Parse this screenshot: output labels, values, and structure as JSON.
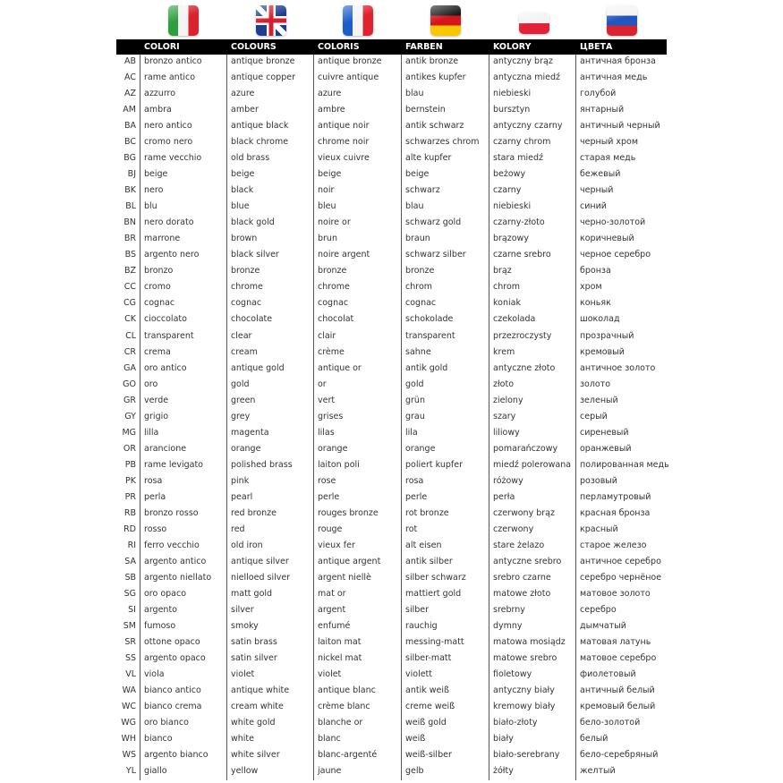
{
  "flags": [
    {
      "name": "italy-flag",
      "colors": [
        "#2e9e3e",
        "#f4f4f4",
        "#d9232e"
      ],
      "dir": "v"
    },
    {
      "name": "uk-flag",
      "colors": [
        "#1f3e8c",
        "#ffffff",
        "#d32030"
      ],
      "dir": "uk"
    },
    {
      "name": "france-flag",
      "colors": [
        "#1c5ec8",
        "#f4f4f4",
        "#e0222e"
      ],
      "dir": "v"
    },
    {
      "name": "germany-flag",
      "colors": [
        "#1a1a1a",
        "#d6141d",
        "#f7c800"
      ],
      "dir": "h"
    },
    {
      "name": "poland-flag",
      "colors": [
        "#f4f4f4",
        "#e0223a"
      ],
      "dir": "h"
    },
    {
      "name": "russia-flag",
      "colors": [
        "#f4f4f4",
        "#1f56c0",
        "#d8242e"
      ],
      "dir": "h"
    }
  ],
  "headers": [
    "",
    "COLORI",
    "COLOURS",
    "COLORIS",
    "FARBEN",
    "KOLORY",
    "ЦВЕТА"
  ],
  "rows": [
    [
      "AB",
      "bronzo antico",
      "antique bronze",
      "antique bronze",
      "antik bronze",
      "antyczny brąz",
      "античная бронза"
    ],
    [
      "AC",
      "rame antico",
      "antique copper",
      "cuivre antique",
      "antikes kupfer",
      "antyczna miedź",
      "античная медь"
    ],
    [
      "AZ",
      "azzurro",
      "azure",
      "azure",
      "blau",
      "niebieski",
      "голубой"
    ],
    [
      "AM",
      "ambra",
      "amber",
      "ambre",
      "bernstein",
      "bursztyn",
      "янтарный"
    ],
    [
      "BA",
      "nero antico",
      "antique black",
      "antique noir",
      "antik schwarz",
      "antyczny czarny",
      "античный черный"
    ],
    [
      "BC",
      "cromo nero",
      "black chrome",
      "chrome noir",
      "schwarzes chrom",
      "czarny chrom",
      "черный хром"
    ],
    [
      "BG",
      "rame vecchio",
      "old brass",
      "vieux cuivre",
      "alte kupfer",
      "stara miedź",
      "старая медь"
    ],
    [
      "BJ",
      "beige",
      "beige",
      "beige",
      "beige",
      "beżowy",
      "бежевый"
    ],
    [
      "BK",
      "nero",
      "black",
      "noir",
      "schwarz",
      "czarny",
      "черный"
    ],
    [
      "BL",
      "blu",
      "blue",
      "bleu",
      "blau",
      "niebieski",
      "синий"
    ],
    [
      "BN",
      "nero dorato",
      "black gold",
      "noire or",
      "schwarz gold",
      "czarny-złoto",
      "черно-золотой"
    ],
    [
      "BR",
      "marrone",
      "brown",
      "brun",
      "braun",
      "brązowy",
      "коричневый"
    ],
    [
      "BS",
      "argento nero",
      "black silver",
      "noire argent",
      "schwarz silber",
      "czarne srebro",
      "черное серебро"
    ],
    [
      "BZ",
      "bronzo",
      "bronze",
      "bronze",
      "bronze",
      "brąz",
      "бронза"
    ],
    [
      "CC",
      "cromo",
      "chrome",
      "chrome",
      "chrom",
      "chrom",
      "хром"
    ],
    [
      "CG",
      "cognac",
      "cognac",
      "cognac",
      "cognac",
      "koniak",
      "коньяк"
    ],
    [
      "CK",
      "cioccolato",
      "chocolate",
      "chocolat",
      "schokolade",
      "czekolada",
      "шоколад"
    ],
    [
      "CL",
      "transparent",
      "clear",
      "clair",
      "transparent",
      "przezroczysty",
      "прозрачный"
    ],
    [
      "CR",
      "crema",
      "cream",
      "crème",
      "sahne",
      "krem",
      "кремовый"
    ],
    [
      "GA",
      "oro antico",
      "antique gold",
      "antique or",
      "antik gold",
      "antyczne złoto",
      "античное золото"
    ],
    [
      "GO",
      "oro",
      "gold",
      "or",
      "gold",
      "złoto",
      "золото"
    ],
    [
      "GR",
      "verde",
      "green",
      "vert",
      "grün",
      "zielony",
      "зеленый"
    ],
    [
      "GY",
      "grigio",
      "grey",
      "grises",
      "grau",
      "szary",
      "серый"
    ],
    [
      "MG",
      "lilla",
      "magenta",
      "lilas",
      "lila",
      "liliowy",
      "сиреневый"
    ],
    [
      "OR",
      "arancione",
      "orange",
      "orange",
      "orange",
      "pomarańczowy",
      "оранжевый"
    ],
    [
      "PB",
      "rame levigato",
      "polished brass",
      "laiton poli",
      "poliert kupfer",
      "miedź polerowana",
      "полированная медь"
    ],
    [
      "PK",
      "rosa",
      "pink",
      "rose",
      "rosa",
      "różowy",
      "розовый"
    ],
    [
      "PR",
      "perla",
      "pearl",
      "perle",
      "perle",
      "perła",
      "перламутровый"
    ],
    [
      "RB",
      "bronzo rosso",
      "red bronze",
      "rouges bronze",
      "rot bronze",
      "czerwony brąz",
      "красная бронза"
    ],
    [
      "RD",
      "rosso",
      "red",
      "rouge",
      "rot",
      "czerwony",
      "красный"
    ],
    [
      "RI",
      "ferro vecchio",
      "old iron",
      "vieux fer",
      "alt eisen",
      "stare żelazo",
      "старое железо"
    ],
    [
      "SA",
      "argento antico",
      "antique silver",
      "antique argent",
      "antik silber",
      "antyczne srebro",
      "античное серебро"
    ],
    [
      "SB",
      "argento niellato",
      "nielloed silver",
      "argent niellè",
      "silber schwarz",
      "srebro czarne",
      "серебро чернёное"
    ],
    [
      "SG",
      "oro opaco",
      "matt gold",
      "mat or",
      "mattiert gold",
      "matowe złoto",
      "матовое золото"
    ],
    [
      "SI",
      "argento",
      "silver",
      "argent",
      "silber",
      "srebrny",
      "серебро"
    ],
    [
      "SM",
      "fumoso",
      "smoky",
      "enfumé",
      "rauchig",
      "dymny",
      "дымчатый"
    ],
    [
      "SR",
      "ottone opaco",
      "satin brass",
      "laiton mat",
      "messing-matt",
      "matowa mosiądz",
      "матовая латунь"
    ],
    [
      "SS",
      "argento opaco",
      "satin silver",
      "nickel mat",
      "silber-matt",
      "matowe srebro",
      "матовое серебро"
    ],
    [
      "VL",
      "viola",
      "violet",
      "violet",
      "violett",
      "fioletowy",
      "фиолетовый"
    ],
    [
      "WA",
      "bianco antico",
      "antique white",
      "antique blanc",
      "antik weiß",
      "antyczny biały",
      "античный белый"
    ],
    [
      "WC",
      "bianco crema",
      "cream white",
      "crème blanc",
      "creme weiß",
      "kremowy biały",
      "кремовый белый"
    ],
    [
      "WG",
      "oro bianco",
      "white gold",
      "blanche or",
      "weiß gold",
      "biało-złoty",
      "бело-золотой"
    ],
    [
      "WH",
      "bianco",
      "white",
      "blanc",
      "weiß",
      "biały",
      "белый"
    ],
    [
      "WS",
      "argento bianco",
      "white silver",
      "blanc-argenté",
      "weiß-silber",
      "biało-serebrany",
      "бело-серебряный"
    ],
    [
      "YL",
      "giallo",
      "yellow",
      "jaune",
      "gelb",
      "żółty",
      "желтый"
    ]
  ]
}
